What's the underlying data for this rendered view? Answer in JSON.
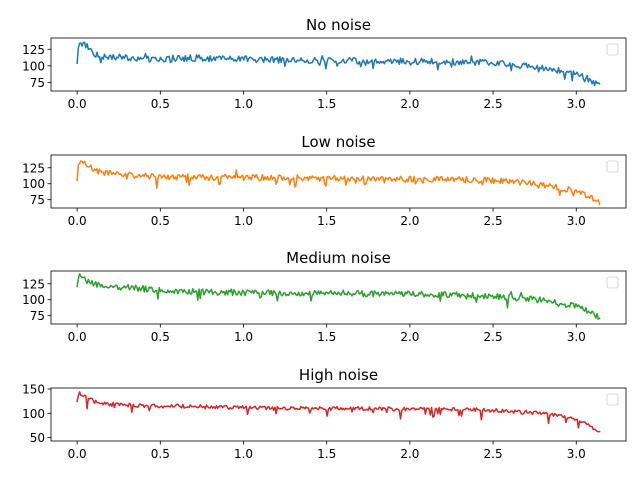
{
  "chart_data": [
    {
      "type": "line",
      "title": "No noise",
      "color": "#1f77b4",
      "xlim": [
        -0.157,
        3.299
      ],
      "ylim": [
        62,
        142
      ],
      "xticks": [
        0.0,
        0.5,
        1.0,
        1.5,
        2.0,
        2.5,
        3.0
      ],
      "xtick_labels": [
        "0.0",
        "0.5",
        "1.0",
        "1.5",
        "2.0",
        "2.5",
        "3.0"
      ],
      "yticks": [
        75,
        100,
        125
      ],
      "ytick_labels": [
        "75",
        "100",
        "125"
      ],
      "legend": "empty, upper-right",
      "x": [
        0.0,
        0.01,
        0.02,
        0.05,
        0.08,
        0.1,
        0.15,
        0.2,
        0.3,
        0.4,
        0.5,
        0.6,
        0.7,
        0.8,
        0.9,
        1.0,
        1.2,
        1.4,
        1.6,
        1.8,
        2.0,
        2.2,
        2.4,
        2.5,
        2.6,
        2.7,
        2.8,
        2.9,
        3.0,
        3.05,
        3.1,
        3.14
      ],
      "y": [
        102,
        138,
        135,
        132,
        125,
        118,
        115,
        114,
        112,
        110,
        110,
        111,
        112,
        111,
        110,
        110,
        109,
        108,
        108,
        107,
        107,
        106,
        105,
        105,
        102,
        100,
        97,
        93,
        88,
        84,
        76,
        72
      ]
    },
    {
      "type": "line",
      "title": "Low noise",
      "color": "#ff7f0e",
      "xlim": [
        -0.157,
        3.299
      ],
      "ylim": [
        62,
        145
      ],
      "xticks": [
        0.0,
        0.5,
        1.0,
        1.5,
        2.0,
        2.5,
        3.0
      ],
      "xtick_labels": [
        "0.0",
        "0.5",
        "1.0",
        "1.5",
        "2.0",
        "2.5",
        "3.0"
      ],
      "yticks": [
        75,
        100,
        125
      ],
      "ytick_labels": [
        "75",
        "100",
        "125"
      ],
      "legend": "empty, upper-right",
      "x": [
        0.0,
        0.01,
        0.02,
        0.05,
        0.08,
        0.1,
        0.15,
        0.2,
        0.3,
        0.4,
        0.5,
        0.6,
        0.7,
        0.8,
        0.9,
        1.0,
        1.2,
        1.4,
        1.6,
        1.8,
        2.0,
        2.2,
        2.4,
        2.5,
        2.6,
        2.7,
        2.8,
        2.9,
        3.0,
        3.05,
        3.1,
        3.14
      ],
      "y": [
        105,
        138,
        134,
        130,
        126,
        122,
        118,
        116,
        113,
        112,
        111,
        111,
        111,
        110,
        110,
        110,
        109,
        109,
        108,
        108,
        107,
        107,
        106,
        105,
        103,
        101,
        98,
        94,
        88,
        83,
        76,
        70
      ]
    },
    {
      "type": "line",
      "title": "Medium noise",
      "color": "#2ca02c",
      "xlim": [
        -0.157,
        3.299
      ],
      "ylim": [
        62,
        145
      ],
      "xticks": [
        0.0,
        0.5,
        1.0,
        1.5,
        2.0,
        2.5,
        3.0
      ],
      "xtick_labels": [
        "0.0",
        "0.5",
        "1.0",
        "1.5",
        "2.0",
        "2.5",
        "3.0"
      ],
      "yticks": [
        75,
        100,
        125
      ],
      "ytick_labels": [
        "75",
        "100",
        "125"
      ],
      "legend": "empty, upper-right",
      "x": [
        0.0,
        0.01,
        0.02,
        0.05,
        0.08,
        0.1,
        0.15,
        0.2,
        0.3,
        0.4,
        0.5,
        0.6,
        0.7,
        0.8,
        0.9,
        1.0,
        1.2,
        1.4,
        1.6,
        1.8,
        2.0,
        2.2,
        2.4,
        2.5,
        2.6,
        2.7,
        2.8,
        2.9,
        3.0,
        3.05,
        3.1,
        3.14
      ],
      "y": [
        118,
        138,
        136,
        130,
        126,
        124,
        122,
        121,
        119,
        117,
        115,
        114,
        113,
        112,
        112,
        111,
        111,
        110,
        110,
        109,
        109,
        108,
        107,
        106,
        104,
        102,
        99,
        95,
        89,
        84,
        77,
        72
      ]
    },
    {
      "type": "line",
      "title": "High noise",
      "color": "#d62728",
      "xlim": [
        -0.157,
        3.299
      ],
      "ylim": [
        43,
        152
      ],
      "xticks": [
        0.0,
        0.5,
        1.0,
        1.5,
        2.0,
        2.5,
        3.0
      ],
      "xtick_labels": [
        "0.0",
        "0.5",
        "1.0",
        "1.5",
        "2.0",
        "2.5",
        "3.0"
      ],
      "yticks": [
        50,
        100,
        150
      ],
      "ytick_labels": [
        "50",
        "100",
        "150"
      ],
      "legend": "empty, upper-right",
      "x": [
        0.0,
        0.01,
        0.02,
        0.05,
        0.08,
        0.1,
        0.15,
        0.2,
        0.3,
        0.4,
        0.5,
        0.6,
        0.7,
        0.8,
        0.9,
        1.0,
        1.2,
        1.4,
        1.6,
        1.8,
        2.0,
        2.2,
        2.4,
        2.5,
        2.6,
        2.7,
        2.8,
        2.9,
        3.0,
        3.05,
        3.1,
        3.14
      ],
      "y": [
        122,
        145,
        140,
        134,
        128,
        124,
        121,
        119,
        117,
        116,
        115,
        115,
        114,
        113,
        112,
        112,
        111,
        110,
        110,
        109,
        109,
        108,
        107,
        106,
        104,
        102,
        99,
        95,
        88,
        82,
        72,
        60
      ]
    }
  ]
}
